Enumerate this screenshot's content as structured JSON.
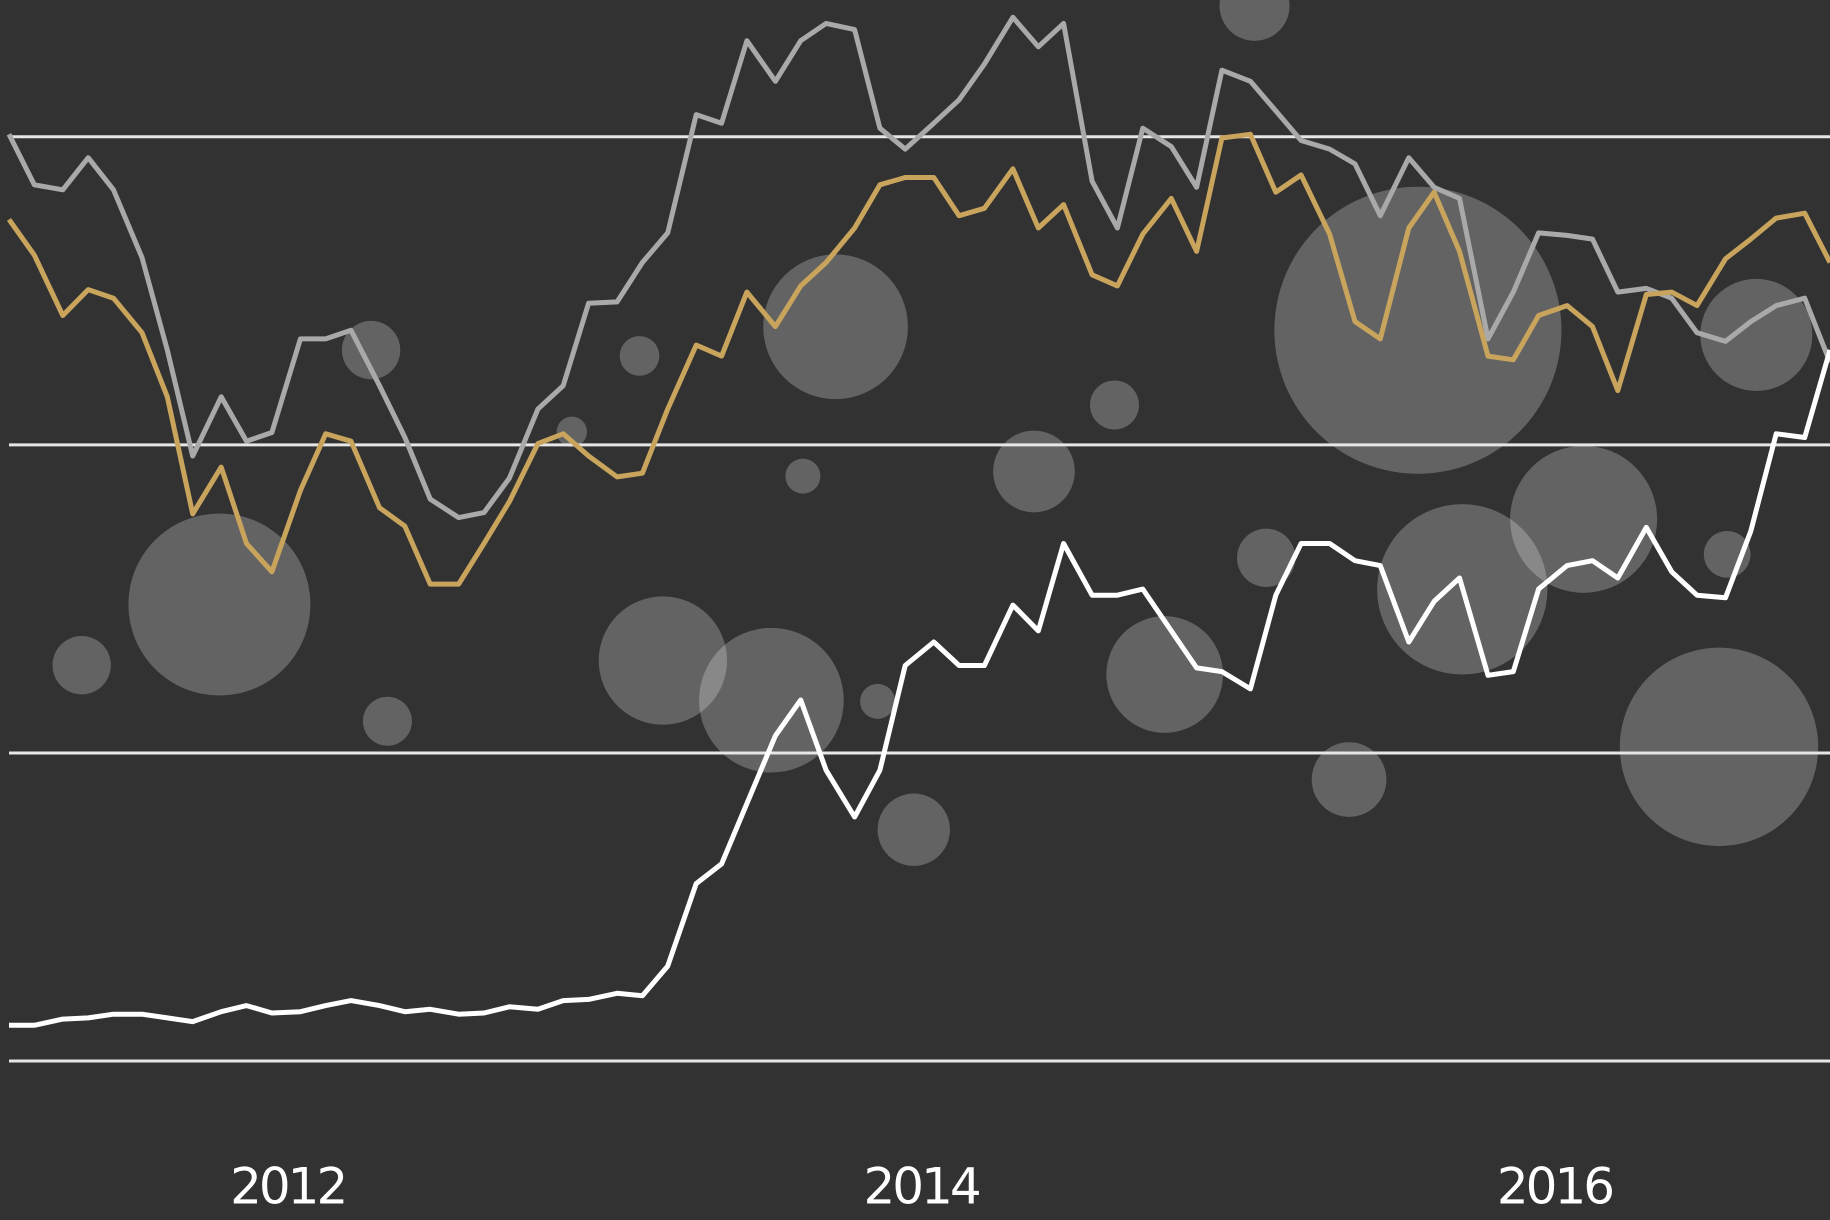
{
  "chart_data": {
    "type": "line",
    "x": [
      2011.12,
      2011.2,
      2011.29,
      2011.37,
      2011.45,
      2011.54,
      2011.62,
      2011.7,
      2011.79,
      2011.87,
      2011.95,
      2012.04,
      2012.12,
      2012.2,
      2012.29,
      2012.37,
      2012.45,
      2012.54,
      2012.62,
      2012.7,
      2012.79,
      2012.87,
      2012.95,
      2013.04,
      2013.12,
      2013.2,
      2013.29,
      2013.37,
      2013.45,
      2013.54,
      2013.62,
      2013.7,
      2013.79,
      2013.87,
      2013.95,
      2014.04,
      2014.12,
      2014.2,
      2014.29,
      2014.37,
      2014.45,
      2014.54,
      2014.62,
      2014.7,
      2014.79,
      2014.87,
      2014.95,
      2015.04,
      2015.12,
      2015.2,
      2015.29,
      2015.37,
      2015.45,
      2015.54,
      2015.62,
      2015.7,
      2015.79,
      2015.87,
      2015.95,
      2016.04,
      2016.12,
      2016.2,
      2016.29,
      2016.37,
      2016.45,
      2016.54,
      2016.62,
      2016.7,
      2016.79,
      2016.87
    ],
    "series": [
      {
        "color": "#a9a9a9",
        "values": [
          75.2,
          71.1,
          70.7,
          73.3,
          70.7,
          65.2,
          57.7,
          49.1,
          53.9,
          50.3,
          51.0,
          58.6,
          58.6,
          59.3,
          54.8,
          50.6,
          45.6,
          44.1,
          44.5,
          47.3,
          52.9,
          54.8,
          61.5,
          61.6,
          64.8,
          67.2,
          76.8,
          76.1,
          82.8,
          79.5,
          82.8,
          84.2,
          83.7,
          75.7,
          74.0,
          76.1,
          78.0,
          80.9,
          84.7,
          82.3,
          84.2,
          71.4,
          67.6,
          75.7,
          74.2,
          70.9,
          80.4,
          79.5,
          77.1,
          74.7,
          74.0,
          72.8,
          68.6,
          73.3,
          70.9,
          70.0,
          58.6,
          62.4,
          67.2,
          67.0,
          66.7,
          62.4,
          62.7,
          61.9,
          59.1,
          58.4,
          60.0,
          61.3,
          61.9,
          56.7
        ]
      },
      {
        "color": "#c9a45c",
        "values": [
          68.3,
          65.4,
          60.5,
          62.6,
          61.9,
          59.1,
          53.9,
          44.4,
          48.2,
          42.0,
          39.7,
          46.3,
          50.9,
          50.3,
          44.9,
          43.4,
          38.7,
          38.7,
          42.0,
          45.4,
          50.1,
          50.9,
          49.1,
          47.4,
          47.7,
          52.9,
          58.1,
          57.2,
          62.4,
          59.6,
          62.9,
          64.8,
          67.6,
          71.1,
          71.7,
          71.7,
          68.6,
          69.2,
          72.4,
          67.6,
          69.5,
          63.8,
          62.9,
          67.1,
          70.0,
          65.7,
          74.9,
          75.2,
          70.5,
          71.9,
          67.1,
          60.0,
          58.6,
          67.6,
          70.5,
          65.7,
          57.2,
          56.9,
          60.5,
          61.3,
          59.6,
          54.4,
          62.2,
          62.4,
          61.3,
          65.1,
          66.7,
          68.4,
          68.8,
          64.8
        ]
      },
      {
        "color": "#ffffff",
        "values": [
          2.9,
          2.9,
          3.4,
          3.5,
          3.8,
          3.8,
          3.5,
          3.2,
          4.0,
          4.5,
          3.9,
          4.0,
          4.5,
          4.9,
          4.5,
          4.0,
          4.2,
          3.8,
          3.9,
          4.4,
          4.2,
          4.9,
          5.0,
          5.5,
          5.3,
          7.7,
          14.4,
          16.0,
          20.9,
          26.4,
          29.3,
          23.6,
          19.8,
          23.6,
          32.1,
          34.0,
          32.1,
          32.1,
          37.0,
          34.9,
          42.0,
          37.8,
          37.8,
          38.3,
          34.9,
          31.9,
          31.6,
          30.2,
          37.8,
          42.0,
          42.0,
          40.6,
          40.2,
          34.0,
          37.3,
          39.2,
          31.3,
          31.6,
          38.3,
          40.2,
          40.6,
          39.2,
          43.3,
          39.7,
          37.8,
          37.6,
          43.0,
          50.9,
          50.6,
          57.7
        ]
      }
    ],
    "xlim": [
      2011.12,
      2016.87
    ],
    "xticks": [
      2012,
      2014,
      2016
    ],
    "ylim": [
      -12.9,
      86.1
    ],
    "yticks": [
      0,
      25,
      50,
      75
    ],
    "grid": true
  }
}
